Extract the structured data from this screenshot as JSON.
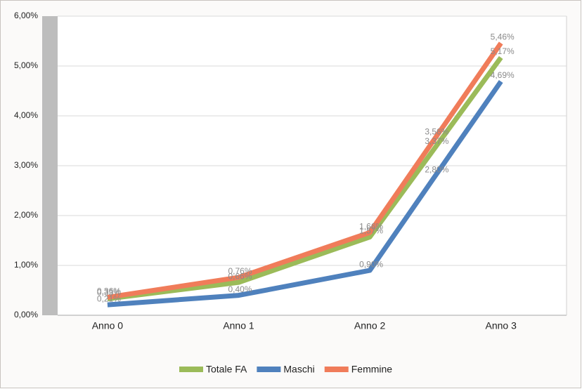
{
  "chart_data": {
    "type": "line",
    "x": [
      0,
      1,
      2,
      2.5,
      3
    ],
    "xlim": [
      -0.38,
      3.5
    ],
    "xticks": [
      {
        "value": 0,
        "label": "Anno 0"
      },
      {
        "value": 1,
        "label": "Anno 1"
      },
      {
        "value": 2,
        "label": "Anno 2"
      },
      {
        "value": 3,
        "label": "Anno 3"
      }
    ],
    "ylim": [
      0,
      6
    ],
    "yticks": [
      {
        "value": 0,
        "label": "0,00%"
      },
      {
        "value": 1,
        "label": "1,00%"
      },
      {
        "value": 2,
        "label": "2,00%"
      },
      {
        "value": 3,
        "label": "3,00%"
      },
      {
        "value": 4,
        "label": "4,00%"
      },
      {
        "value": 5,
        "label": "5,00%"
      },
      {
        "value": 6,
        "label": "6,00%"
      }
    ],
    "grid": true,
    "legend": "bottom",
    "series": [
      {
        "name": "Totale FA",
        "color": "#9bbb59",
        "values": [
          0.33,
          0.66,
          1.57,
          3.37,
          5.17
        ],
        "value_labels": [
          "0,33%",
          "0,66%",
          "1,57%",
          "3,37%",
          "5,17%"
        ]
      },
      {
        "name": "Maschi",
        "color": "#4f81bd",
        "values": [
          0.21,
          0.4,
          0.9,
          2.8,
          4.69
        ],
        "value_labels": [
          "0,21%",
          "0,40%",
          "0,90%",
          "2,80%",
          "4,69%"
        ]
      },
      {
        "name": "Femmine",
        "color": "#f07c5a",
        "values": [
          0.36,
          0.76,
          1.66,
          3.56,
          5.46
        ],
        "value_labels": [
          "0,36%",
          "0,76%",
          "1,66%",
          "3,56%",
          "5,46%"
        ]
      }
    ]
  }
}
